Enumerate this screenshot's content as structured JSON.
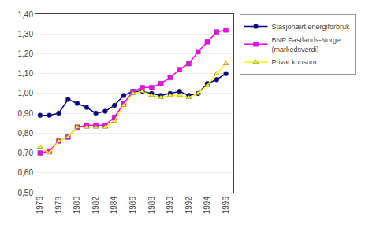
{
  "chart_data": {
    "type": "line",
    "x": [
      1976,
      1977,
      1978,
      1979,
      1980,
      1981,
      1982,
      1983,
      1984,
      1985,
      1986,
      1987,
      1988,
      1989,
      1990,
      1991,
      1992,
      1993,
      1994,
      1995,
      1996
    ],
    "series": [
      {
        "name": "Stasjonært energiforbruk",
        "color": "#00008B",
        "marker": "circle",
        "values": [
          0.89,
          0.89,
          0.9,
          0.97,
          0.95,
          0.93,
          0.9,
          0.91,
          0.94,
          0.99,
          1.01,
          1.01,
          1.0,
          0.99,
          1.0,
          1.01,
          0.99,
          1.0,
          1.05,
          1.07,
          1.1
        ]
      },
      {
        "name": "BNP Fastlands-Norge\n(markedsverdi)",
        "color": "#FF00FF",
        "marker": "square",
        "values": [
          0.7,
          0.71,
          0.76,
          0.78,
          0.83,
          0.84,
          0.84,
          0.84,
          0.88,
          0.95,
          1.01,
          1.03,
          1.03,
          1.05,
          1.08,
          1.12,
          1.15,
          1.21,
          1.26,
          1.31,
          1.32
        ]
      },
      {
        "name": "Privat konsum",
        "color": "#FFFF00",
        "marker": "triangle-up",
        "values": [
          0.73,
          0.7,
          0.76,
          0.78,
          0.83,
          0.83,
          0.83,
          0.83,
          0.86,
          0.94,
          1.0,
          1.01,
          0.99,
          0.98,
          0.99,
          0.99,
          0.98,
          1.0,
          1.04,
          1.1,
          1.15
        ]
      }
    ],
    "xlim": [
      1975.5,
      1996.8
    ],
    "xticks": [
      1976,
      1978,
      1980,
      1982,
      1984,
      1986,
      1988,
      1990,
      1992,
      1994,
      1996
    ],
    "ylim": [
      0.5,
      1.4
    ],
    "yticks": [
      {
        "value": 0.5,
        "label": "0,50"
      },
      {
        "value": 0.6,
        "label": "0,60"
      },
      {
        "value": 0.7,
        "label": "0,70"
      },
      {
        "value": 0.8,
        "label": "0,80"
      },
      {
        "value": 0.9,
        "label": "0,90"
      },
      {
        "value": 1.0,
        "label": "1,00"
      },
      {
        "value": 1.1,
        "label": "1,10"
      },
      {
        "value": 1.2,
        "label": "1,20"
      },
      {
        "value": 1.3,
        "label": "1,30"
      },
      {
        "value": 1.4,
        "label": "1,40"
      }
    ],
    "grid": true,
    "legend": "right"
  }
}
